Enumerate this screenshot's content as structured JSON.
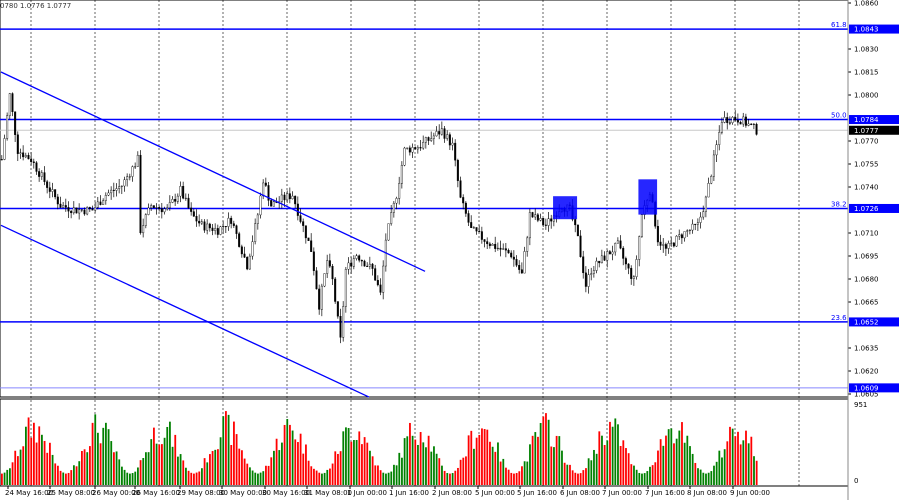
{
  "header": {
    "ohlc_text": "0780 1.0776 1.0777"
  },
  "chart_data": {
    "type": "candlestick",
    "x_unit": "hourly bars",
    "price_ticks": [
      "1.0860",
      "1.0830",
      "1.0815",
      "1.0800",
      "1.0770",
      "1.0755",
      "1.0740",
      "1.0710",
      "1.0695",
      "1.0680",
      "1.0665",
      "1.0635",
      "1.0620",
      "1.0605"
    ],
    "ylim": [
      1.06,
      1.0862
    ],
    "time_labels": [
      "24 May 16:00",
      "25 May 08:00",
      "26 May 00:00",
      "26 May 16:00",
      "29 May 08:00",
      "30 May 00:00",
      "30 May 16:00",
      "31 May 08:00",
      "1 Jun 00:00",
      "1 Jun 16:00",
      "2 Jun 08:00",
      "5 Jun 00:00",
      "5 Jun 16:00",
      "6 Jun 08:00",
      "7 Jun 00:00",
      "7 Jun 16:00",
      "8 Jun 08:00",
      "9 Jun 00:00"
    ],
    "close_path": [
      [
        0,
        1.0758
      ],
      [
        3,
        1.08
      ],
      [
        6,
        1.0764
      ],
      [
        11,
        1.0758
      ],
      [
        17,
        1.0741
      ],
      [
        22,
        1.0728
      ],
      [
        28,
        1.0725
      ],
      [
        34,
        1.0725
      ],
      [
        39,
        1.0735
      ],
      [
        45,
        1.0741
      ],
      [
        51,
        1.0758
      ],
      [
        52,
        1.0712
      ],
      [
        56,
        1.0728
      ],
      [
        62,
        1.0725
      ],
      [
        67,
        1.0738
      ],
      [
        71,
        1.0722
      ],
      [
        75,
        1.0715
      ],
      [
        81,
        1.0712
      ],
      [
        86,
        1.0719
      ],
      [
        92,
        1.0689
      ],
      [
        96,
        1.0722
      ],
      [
        98,
        1.0745
      ],
      [
        101,
        1.0728
      ],
      [
        105,
        1.0732
      ],
      [
        109,
        1.0735
      ],
      [
        112,
        1.0719
      ],
      [
        116,
        1.0699
      ],
      [
        119,
        1.0663
      ],
      [
        122,
        1.0692
      ],
      [
        124,
        1.0679
      ],
      [
        127,
        1.064
      ],
      [
        129,
        1.0686
      ],
      [
        133,
        1.0696
      ],
      [
        139,
        1.0686
      ],
      [
        142,
        1.067
      ],
      [
        144,
        1.0706
      ],
      [
        148,
        1.0735
      ],
      [
        151,
        1.0764
      ],
      [
        157,
        1.0767
      ],
      [
        165,
        1.0777
      ],
      [
        169,
        1.0767
      ],
      [
        172,
        1.0732
      ],
      [
        176,
        1.0712
      ],
      [
        184,
        1.0702
      ],
      [
        191,
        1.0696
      ],
      [
        195,
        1.0683
      ],
      [
        198,
        1.0722
      ],
      [
        204,
        1.0715
      ],
      [
        210,
        1.0728
      ],
      [
        213,
        1.0725
      ],
      [
        216,
        1.0706
      ],
      [
        219,
        1.0676
      ],
      [
        221,
        1.0686
      ],
      [
        227,
        1.0696
      ],
      [
        231,
        1.0702
      ],
      [
        234,
        1.0689
      ],
      [
        237,
        1.0679
      ],
      [
        240,
        1.0722
      ],
      [
        243,
        1.0738
      ],
      [
        246,
        1.0706
      ],
      [
        249,
        1.0699
      ],
      [
        255,
        1.0709
      ],
      [
        261,
        1.0715
      ],
      [
        264,
        1.0732
      ],
      [
        267,
        1.0758
      ],
      [
        270,
        1.0784
      ],
      [
        274,
        1.0785
      ],
      [
        277,
        1.0784
      ],
      [
        283,
        1.0777
      ]
    ],
    "levels": [
      {
        "label": "61.8",
        "price": "1.0843",
        "color": "#0000ff"
      },
      {
        "label": "50.0",
        "price": "1.0784",
        "color": "#0000ff"
      },
      {
        "label": "38.2",
        "price": "1.0726",
        "color": "#0000ff"
      },
      {
        "label": "23.6",
        "price": "1.0652",
        "color": "#0000ff"
      },
      {
        "label": "",
        "price": "1.0609",
        "color": "#8888ff"
      }
    ],
    "current_price": "1.0777",
    "trend_lines": [
      {
        "from": [
          0,
          1.0815
        ],
        "to": [
          159,
          1.0685
        ]
      },
      {
        "from": [
          0,
          1.0715
        ],
        "to": [
          138,
          1.0603
        ]
      }
    ],
    "rectangles": [
      {
        "bars": [
          207,
          216
        ],
        "prices": [
          1.0719,
          1.0734
        ]
      },
      {
        "bars": [
          239,
          246
        ],
        "prices": [
          1.0722,
          1.0745
        ]
      }
    ],
    "volume": {
      "max_label": "951",
      "min_label": "0",
      "up_color": "#008000",
      "down_color": "#ff0000"
    }
  }
}
